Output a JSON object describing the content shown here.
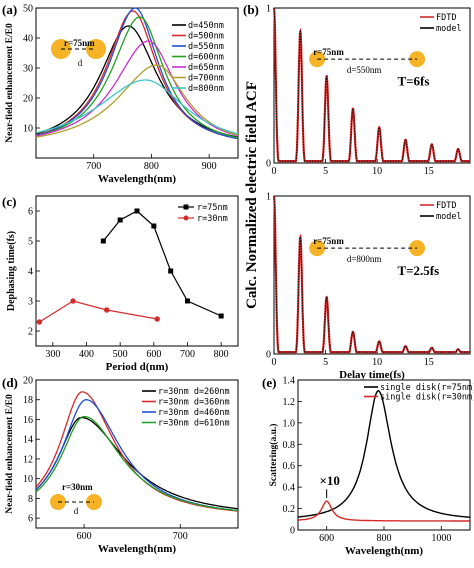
{
  "colors": {
    "black": "#000000",
    "red": "#d42a2a",
    "blue": "#1f4fd8",
    "green": "#22a022",
    "magenta": "#cc2fcc",
    "olive": "#b0a030",
    "teal": "#3cc6c6",
    "disk": "#f5b325",
    "dash": "#000000"
  },
  "panels": {
    "a": "(a)",
    "b": "(b)",
    "c": "(c)",
    "d": "(d)",
    "e": "(e)"
  },
  "shared": {
    "b_ylabel": "Calc. Normalized electric field ACF"
  },
  "chart_data": [
    {
      "id": "a",
      "type": "line",
      "xlabel": "Wavelength(nm)",
      "ylabel": "Near-field enhancement E/E0",
      "xlim": [
        600,
        950
      ],
      "ylim": [
        0,
        50
      ],
      "xticks": [
        700,
        800,
        900
      ],
      "yticks": [
        10,
        20,
        30,
        40,
        50
      ],
      "annotation": {
        "r": "r=75nm",
        "d": "d"
      },
      "legend_position": "top-right",
      "series": [
        {
          "name": "d=450nm",
          "color": "#000000",
          "peak_x": 760,
          "peak_y": 44,
          "w_left": 60,
          "w_right": 62
        },
        {
          "name": "d=500nm",
          "color": "#d42a2a",
          "peak_x": 768,
          "peak_y": 49,
          "w_left": 56,
          "w_right": 52
        },
        {
          "name": "d=550nm",
          "color": "#1f4fd8",
          "peak_x": 772,
          "peak_y": 50,
          "w_left": 56,
          "w_right": 50
        },
        {
          "name": "d=600nm",
          "color": "#22a022",
          "peak_x": 780,
          "peak_y": 47,
          "w_left": 60,
          "w_right": 52
        },
        {
          "name": "d=650nm",
          "color": "#cc2fcc",
          "peak_x": 795,
          "peak_y": 39,
          "w_left": 72,
          "w_right": 58
        },
        {
          "name": "d=700nm",
          "color": "#b0a030",
          "peak_x": 810,
          "peak_y": 31,
          "w_left": 85,
          "w_right": 62
        },
        {
          "name": "d=800nm",
          "color": "#3cc6c6",
          "peak_x": 790,
          "peak_y": 26,
          "w_left": 105,
          "w_right": 85
        }
      ]
    },
    {
      "id": "b-top",
      "type": "line",
      "xlim": [
        0,
        19
      ],
      "ylim": [
        0,
        1
      ],
      "xticks": [
        0,
        5,
        10,
        15
      ],
      "yticks": [
        0,
        1
      ],
      "text": "T=6fs",
      "annotation": {
        "r": "r=75nm",
        "d": "d=550nm"
      },
      "legend_position": "top-right",
      "period": 2.55,
      "decay": 6,
      "peak_values": [
        1,
        0.85,
        0.56,
        0.35,
        0.23,
        0.15,
        0.12,
        0.09
      ],
      "series": [
        {
          "name": "FDTD",
          "color": "#d42a2a"
        },
        {
          "name": "model",
          "color": "#000000"
        }
      ]
    },
    {
      "id": "b-bottom",
      "type": "line",
      "xlabel": "Delay time(fs)",
      "xlim": [
        0,
        19
      ],
      "ylim": [
        0,
        1
      ],
      "xticks": [
        0,
        5,
        10,
        15
      ],
      "yticks": [
        0,
        1
      ],
      "text": "T=2.5fs",
      "annotation": {
        "r": "r=75nm",
        "d": "d=800nm"
      },
      "legend_position": "top-right",
      "period": 2.55,
      "decay": 2.5,
      "peak_values": [
        1,
        0.74,
        0.36,
        0.14,
        0.08,
        0.05,
        0.04,
        0.03
      ],
      "series": [
        {
          "name": "FDTD",
          "color": "#d42a2a"
        },
        {
          "name": "model",
          "color": "#000000"
        }
      ]
    },
    {
      "id": "c",
      "type": "line",
      "xlabel": "Period d(nm)",
      "ylabel": "Dephasing time(fs)",
      "xlim": [
        250,
        850
      ],
      "ylim": [
        1.5,
        6.5
      ],
      "xticks": [
        300,
        400,
        500,
        600,
        700,
        800
      ],
      "yticks": [
        2,
        3,
        4,
        5,
        6
      ],
      "legend_position": "top-right",
      "series": [
        {
          "name": "r=75nm",
          "color": "#000000",
          "marker": "square",
          "x": [
            450,
            500,
            550,
            600,
            650,
            700,
            800
          ],
          "y": [
            5.0,
            5.7,
            6.0,
            5.5,
            4.0,
            3.0,
            2.5
          ]
        },
        {
          "name": "r=30nm",
          "color": "#d42a2a",
          "marker": "circle",
          "x": [
            260,
            360,
            460,
            610
          ],
          "y": [
            2.3,
            3.0,
            2.7,
            2.4
          ]
        }
      ]
    },
    {
      "id": "d",
      "type": "line",
      "xlabel": "Wavelength(nm)",
      "ylabel": "Near-field enhancement E/E0",
      "xlim": [
        550,
        760
      ],
      "ylim": [
        5,
        20
      ],
      "xticks": [
        600,
        700
      ],
      "yticks": [
        6,
        8,
        10,
        12,
        14,
        16,
        18,
        20
      ],
      "annotation": {
        "r": "r=30nm",
        "d": "d"
      },
      "legend_position": "top-right",
      "series": [
        {
          "name": "r=30nm d=260nm",
          "color": "#000000",
          "peak_x": 597,
          "peak_y": 16.2,
          "w_left": 30,
          "w_right": 55
        },
        {
          "name": "r=30nm d=360nm",
          "color": "#d42a2a",
          "peak_x": 598,
          "peak_y": 18.8,
          "w_left": 28,
          "w_right": 42
        },
        {
          "name": "r=30nm d=460nm",
          "color": "#1f4fd8",
          "peak_x": 602,
          "peak_y": 18.0,
          "w_left": 30,
          "w_right": 44
        },
        {
          "name": "r=30nm d=610nm",
          "color": "#22a022",
          "peak_x": 600,
          "peak_y": 16.3,
          "w_left": 30,
          "w_right": 48
        }
      ]
    },
    {
      "id": "e",
      "type": "line",
      "xlabel": "Wavelength(nm)",
      "ylabel": "Scattering(a.u.)",
      "xlim": [
        500,
        1100
      ],
      "ylim": [
        0,
        1.4
      ],
      "xticks": [
        600,
        800,
        1000
      ],
      "yticks": [
        0,
        0.2,
        0.4,
        0.6,
        0.8,
        1.0,
        1.2,
        1.4
      ],
      "ytick_labels": [
        "0",
        "0.2",
        "0.4",
        "0.6",
        "0.8",
        "1.0",
        "1.2",
        "1.4"
      ],
      "text": "×10",
      "legend_position": "top-right",
      "series": [
        {
          "name": "single disk(r=75nm)",
          "color": "#000000",
          "peak_x": 780,
          "peak_y": 1.3,
          "w_left": 50,
          "w_right": 55
        },
        {
          "name": "single disk(r=30nm)",
          "color": "#d42a2a",
          "peak_x": 600,
          "peak_y": 0.27,
          "w_left": 22,
          "w_right": 22
        }
      ]
    }
  ]
}
